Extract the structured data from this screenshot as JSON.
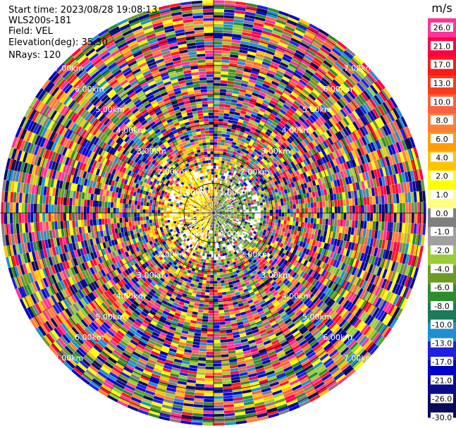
{
  "info": {
    "start_time": "Start time: 2023/08/28 19:08:13",
    "instrument": "WLS200s-181",
    "field": "Field: VEL",
    "elevation": "Elevation(deg): 35.30",
    "nrays": "NRays: 120"
  },
  "colorbar": {
    "unit": "m/s",
    "ticks": [
      "26.0",
      "21.0",
      "17.0",
      "13.0",
      "10.0",
      "8.0",
      "6.0",
      "4.0",
      "2.0",
      "1.0",
      "0.0",
      "-1.0",
      "-2.0",
      "-4.0",
      "-6.0",
      "-8.0",
      "-10.0",
      "-13.0",
      "-17.0",
      "-21.0",
      "-26.0",
      "-30.0"
    ],
    "colors": [
      "#ff3399",
      "#ff0044",
      "#ff1a1a",
      "#ff3a1a",
      "#ff6040",
      "#ff7f3a",
      "#ff9e00",
      "#ffc300",
      "#ffff00",
      "#ffff80",
      "#7f7f7f",
      "#a0a0a0",
      "#9ccc3a",
      "#6b9b23",
      "#2e8b2e",
      "#1a7a5a",
      "#1e90d0",
      "#2020e0",
      "#0000c8",
      "#0a0a8a",
      "#0a0a5a"
    ]
  },
  "chart_data": {
    "type": "ppi",
    "field": "VEL",
    "units": "m/s",
    "nrays": 120,
    "range_ring_labels": [
      "1.00km",
      "2.00km",
      "3.00km",
      "4.00km",
      "5.00km",
      "6.00km",
      "7.00km"
    ],
    "range_rings_km": [
      1,
      2,
      3,
      4,
      5,
      6,
      7
    ],
    "max_range_km": 7.2
  }
}
